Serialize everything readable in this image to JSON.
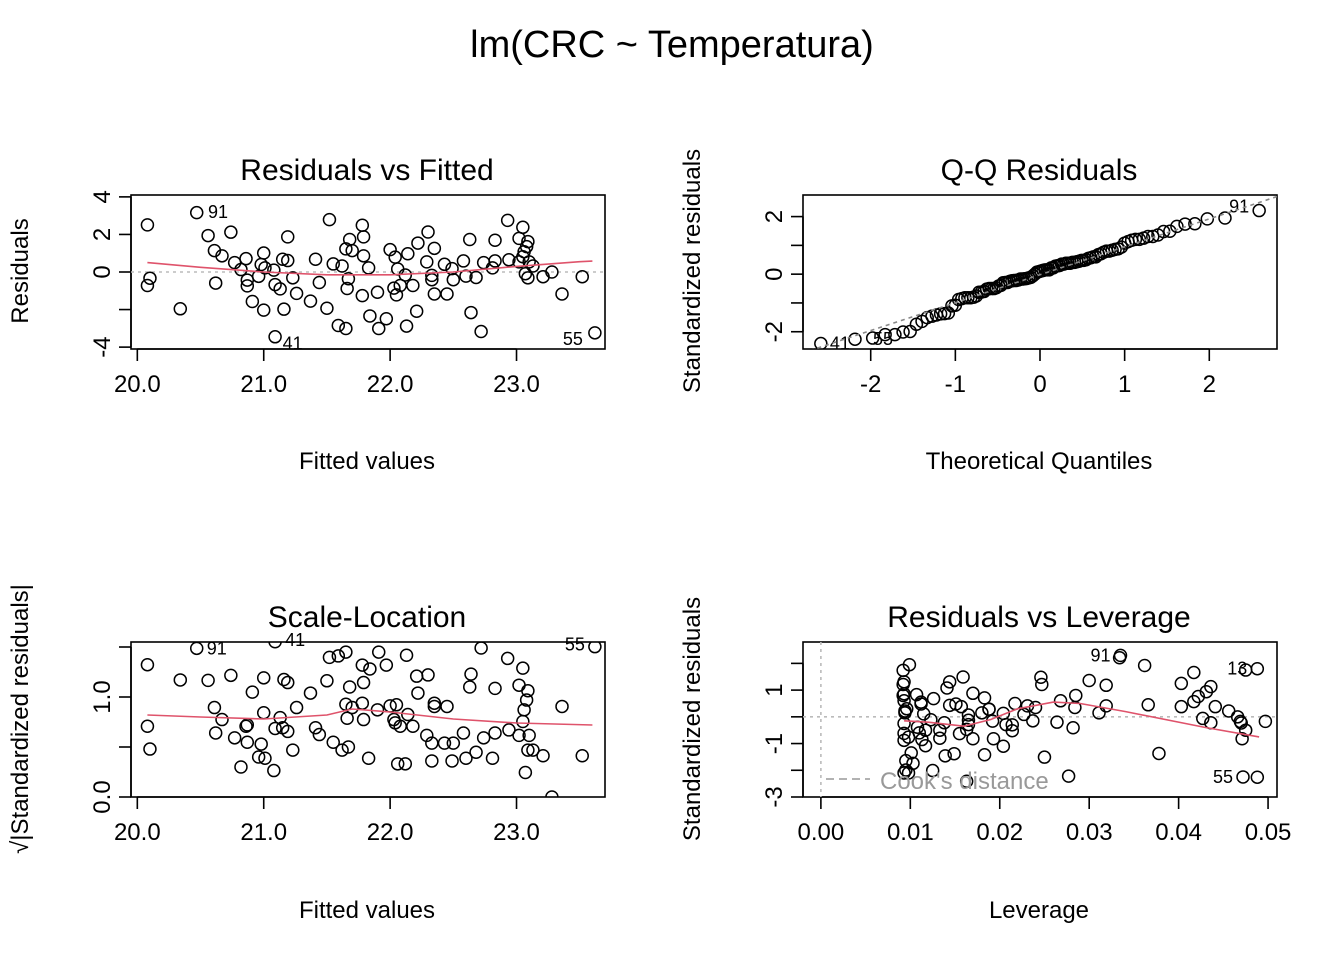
{
  "chart_data": [
    {
      "type": "scatter",
      "id": "rvf",
      "title": "Residuals vs Fitted",
      "xlabel": "Fitted values",
      "ylabel": "Residuals",
      "xlim": [
        19.95,
        23.7
      ],
      "ylim": [
        -4.1,
        4.1
      ],
      "xticks": [
        20.0,
        21.0,
        22.0,
        23.0
      ],
      "xtick_labels": [
        "20.0",
        "21.0",
        "22.0",
        "23.0"
      ],
      "yticks": [
        -4,
        -2,
        0,
        2,
        4
      ],
      "ytick_labels": [
        "-4",
        "",
        "0",
        "2",
        "4"
      ],
      "ref_line": {
        "y": 0,
        "style": "dotted",
        "color": "#bbbbbb"
      },
      "smoother_color": "#df536b",
      "smoother": [
        [
          20.08,
          0.5
        ],
        [
          20.5,
          0.25
        ],
        [
          21.0,
          0.0
        ],
        [
          21.5,
          -0.15
        ],
        [
          22.0,
          -0.15
        ],
        [
          22.5,
          0.0
        ],
        [
          23.0,
          0.3
        ],
        [
          23.5,
          0.55
        ],
        [
          23.6,
          0.58
        ]
      ],
      "labels": [
        {
          "id": "91",
          "x": 20.48,
          "y": 3.2
        },
        {
          "id": "41",
          "x": 21.07,
          "y": -3.5
        },
        {
          "id": "55",
          "x": 23.6,
          "y": -3.2
        }
      ]
    },
    {
      "type": "scatter",
      "id": "qq",
      "title": "Q-Q Residuals",
      "xlabel": "Theoretical Quantiles",
      "ylabel": "Standardized residuals",
      "xlim": [
        -2.8,
        2.8
      ],
      "ylim": [
        -2.6,
        2.75
      ],
      "xticks": [
        -2,
        -1,
        0,
        1,
        2
      ],
      "xtick_labels": [
        "-2",
        "-1",
        "0",
        "1",
        "2"
      ],
      "yticks": [
        -2,
        -1,
        0,
        1,
        2
      ],
      "ytick_labels": [
        "-2",
        "",
        "0",
        "",
        "2"
      ],
      "ref_line": {
        "type": "qqline",
        "style": "dashed",
        "color": "#888888"
      },
      "labels": [
        {
          "id": "41"
        },
        {
          "id": "55"
        },
        {
          "id": "91"
        }
      ]
    },
    {
      "type": "scatter",
      "id": "sl",
      "title": "Scale-Location",
      "xlabel": "Fitted values",
      "ylabel": "√|Standardized residuals|",
      "xlim": [
        19.95,
        23.7
      ],
      "ylim": [
        0.0,
        1.55
      ],
      "xticks": [
        20.0,
        21.0,
        22.0,
        23.0
      ],
      "xtick_labels": [
        "20.0",
        "21.0",
        "22.0",
        "23.0"
      ],
      "yticks": [
        0.0,
        0.5,
        1.0,
        1.5
      ],
      "ytick_labels": [
        "0.0",
        "",
        "1.0",
        ""
      ],
      "smoother_color": "#df536b",
      "smoother": [
        [
          20.08,
          0.82
        ],
        [
          20.5,
          0.8
        ],
        [
          21.0,
          0.78
        ],
        [
          21.5,
          0.82
        ],
        [
          21.7,
          0.88
        ],
        [
          22.0,
          0.85
        ],
        [
          22.5,
          0.78
        ],
        [
          23.0,
          0.74
        ],
        [
          23.6,
          0.72
        ]
      ],
      "labels": [
        {
          "id": "91"
        },
        {
          "id": "41"
        },
        {
          "id": "55"
        }
      ]
    },
    {
      "type": "scatter",
      "id": "rvl",
      "title": "Residuals vs Leverage",
      "xlabel": "Leverage",
      "ylabel": "Standardized residuals",
      "xlim": [
        -0.002,
        0.051
      ],
      "ylim": [
        -3.0,
        2.8
      ],
      "xticks": [
        0.0,
        0.01,
        0.02,
        0.03,
        0.04,
        0.05
      ],
      "xtick_labels": [
        "0.00",
        "0.01",
        "0.02",
        "0.03",
        "0.04",
        "0.05"
      ],
      "yticks": [
        -3,
        -2,
        -1,
        0,
        1,
        2
      ],
      "ytick_labels": [
        "-3",
        "",
        "-1",
        "",
        "1",
        ""
      ],
      "legend": {
        "text": "Cook's distance",
        "position": "bottom-left",
        "color": "#999999"
      },
      "smoother_color": "#df536b",
      "smoother": [
        [
          0.0093,
          -0.15
        ],
        [
          0.012,
          -0.2
        ],
        [
          0.016,
          -0.35
        ],
        [
          0.019,
          -0.1
        ],
        [
          0.022,
          0.3
        ],
        [
          0.026,
          0.55
        ],
        [
          0.029,
          0.5
        ],
        [
          0.034,
          0.2
        ],
        [
          0.043,
          -0.4
        ],
        [
          0.049,
          -0.75
        ]
      ],
      "labels": [
        {
          "id": "91",
          "x": 0.0335,
          "y": 2.3
        },
        {
          "id": "13",
          "x": 0.0488,
          "y": 1.8
        },
        {
          "id": "55",
          "x": 0.0472,
          "y": -2.25
        }
      ]
    }
  ],
  "points": {
    "fitted": [
      20.08,
      20.1,
      20.08,
      20.47,
      20.34,
      20.56,
      20.74,
      20.61,
      20.62,
      20.67,
      20.77,
      20.86,
      20.82,
      20.87,
      20.87,
      20.91,
      21.0,
      21.0,
      20.98,
      20.96,
      21.01,
      21.08,
      21.09,
      21.13,
      21.09,
      21.15,
      21.19,
      21.19,
      21.16,
      21.23,
      21.26,
      21.37,
      21.41,
      21.44,
      21.5,
      21.52,
      21.55,
      21.62,
      21.65,
      21.68,
      21.7,
      21.67,
      21.66,
      21.59,
      21.65,
      21.78,
      21.79,
      21.79,
      21.83,
      21.78,
      21.84,
      21.9,
      21.91,
      21.97,
      22.0,
      22.04,
      22.06,
      22.12,
      22.03,
      22.05,
      22.08,
      22.14,
      22.18,
      22.13,
      22.22,
      22.3,
      22.35,
      22.29,
      22.33,
      22.33,
      22.35,
      22.21,
      22.43,
      22.49,
      22.5,
      22.45,
      22.58,
      22.63,
      22.6,
      22.68,
      22.64,
      22.72,
      22.74,
      22.81,
      22.83,
      22.83,
      22.93,
      22.94,
      23.02,
      23.05,
      23.02,
      23.09,
      23.08,
      23.06,
      23.05,
      23.1,
      23.13,
      23.07,
      23.09,
      23.21,
      23.28,
      23.36,
      23.52,
      23.62
    ],
    "residuals": [
      2.51,
      -0.33,
      -0.72,
      3.16,
      -1.96,
      1.94,
      2.12,
      1.14,
      -0.59,
      0.86,
      0.5,
      0.71,
      0.13,
      -0.43,
      -0.74,
      -1.57,
      1.01,
      -2.03,
      0.4,
      -0.23,
      0.22,
      0.1,
      -0.67,
      -0.9,
      -3.45,
      0.68,
      0.61,
      1.87,
      -1.98,
      -0.31,
      -1.14,
      -1.55,
      0.68,
      -0.56,
      -1.93,
      2.79,
      0.43,
      0.32,
      1.23,
      1.73,
      1.14,
      -0.36,
      -0.88,
      -2.85,
      -3.01,
      2.49,
      1.87,
      0.86,
      0.22,
      -1.26,
      -2.34,
      -1.08,
      -3.01,
      -2.49,
      1.19,
      0.79,
      0.16,
      -0.16,
      -0.86,
      -1.22,
      -0.72,
      0.97,
      -0.72,
      -2.88,
      1.54,
      2.13,
      1.26,
      0.54,
      -0.18,
      -0.41,
      -1.17,
      -2.09,
      0.41,
      0.18,
      -0.41,
      -1.17,
      0.59,
      1.73,
      -0.22,
      -0.29,
      -2.16,
      -3.17,
      0.5,
      0.22,
      1.69,
      0.59,
      2.75,
      0.65,
      0.54,
      2.38,
      1.79,
      1.62,
      1.35,
      1.08,
      0.81,
      0.54,
      0.32,
      -0.09,
      -0.31,
      -0.25,
      0.0,
      -1.17,
      -0.25,
      -3.24
    ],
    "std_residuals": [
      1.75,
      -0.23,
      -0.5,
      2.21,
      -1.37,
      1.36,
      1.48,
      0.8,
      -0.41,
      0.6,
      0.35,
      0.5,
      0.09,
      -0.3,
      -0.52,
      -1.1,
      0.71,
      -1.42,
      0.28,
      -0.16,
      0.15,
      0.07,
      -0.47,
      -0.63,
      -2.41,
      0.48,
      0.43,
      1.31,
      -1.38,
      -0.22,
      -0.8,
      -1.08,
      0.48,
      -0.39,
      -1.35,
      1.95,
      0.3,
      0.22,
      0.86,
      1.21,
      0.8,
      -0.25,
      -0.62,
      -1.99,
      -2.1,
      1.74,
      1.31,
      0.6,
      0.15,
      -0.88,
      -1.64,
      -0.76,
      -2.1,
      -1.74,
      0.83,
      0.55,
      0.11,
      -0.11,
      -0.6,
      -0.85,
      -0.5,
      0.68,
      -0.5,
      -2.01,
      1.08,
      1.49,
      0.88,
      0.38,
      -0.13,
      -0.29,
      -0.82,
      -1.46,
      0.29,
      0.13,
      -0.29,
      -0.82,
      0.41,
      1.21,
      -0.15,
      -0.2,
      -1.51,
      -2.22,
      0.35,
      0.15,
      1.18,
      0.41,
      1.92,
      0.45,
      0.38,
      1.66,
      1.25,
      1.13,
      0.94,
      0.76,
      0.57,
      0.38,
      0.22,
      -0.06,
      -0.22,
      -0.17,
      0.0,
      -0.82,
      -0.17,
      -2.26
    ],
    "leverage": [
      0.0475,
      0.047,
      0.0475,
      0.0334,
      0.0378,
      0.03,
      0.0246,
      0.0285,
      0.0282,
      0.0268,
      0.024,
      0.0217,
      0.0227,
      0.0214,
      0.0214,
      0.0204,
      0.0183,
      0.0183,
      0.0188,
      0.0192,
      0.018,
      0.0165,
      0.0163,
      0.0155,
      0.0163,
      0.0151,
      0.0144,
      0.0144,
      0.0149,
      0.0138,
      0.0133,
      0.0117,
      0.0112,
      0.0108,
      0.0101,
      0.0099,
      0.0096,
      0.0094,
      0.0093,
      0.0092,
      0.0092,
      0.0093,
      0.0093,
      0.0095,
      0.0093,
      0.0092,
      0.0093,
      0.0093,
      0.0094,
      0.0093,
      0.0095,
      0.0098,
      0.0098,
      0.0103,
      0.0107,
      0.0112,
      0.0115,
      0.0123,
      0.011,
      0.0113,
      0.0117,
      0.0126,
      0.0133,
      0.0125,
      0.0141,
      0.0159,
      0.017,
      0.0157,
      0.0165,
      0.0165,
      0.017,
      0.0139,
      0.0188,
      0.0204,
      0.0207,
      0.0193,
      0.0231,
      0.0247,
      0.0237,
      0.0264,
      0.025,
      0.0277,
      0.0284,
      0.0311,
      0.0319,
      0.0319,
      0.0362,
      0.0366,
      0.0403,
      0.0417,
      0.0403,
      0.0436,
      0.0431,
      0.0422,
      0.0417,
      0.0441,
      0.0456,
      0.0427,
      0.0436,
      0.0497,
      0.0466,
      0.0471,
      0.0469,
      0.0488
    ]
  },
  "suptitle": "lm(CRC ~ Temperatura)"
}
